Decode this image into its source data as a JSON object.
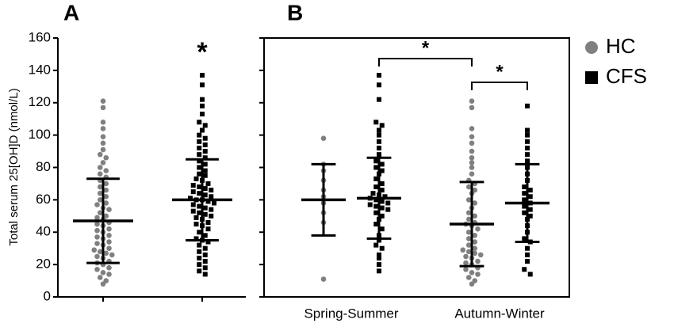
{
  "chart_data": [
    {
      "type": "dot",
      "label": "A",
      "ylabel": "Total serum 25[OH]D (nmol/L)",
      "ylim": [
        0,
        160
      ],
      "yticks": [
        0,
        20,
        40,
        60,
        80,
        100,
        120,
        140,
        160
      ],
      "annotation": "*",
      "series": [
        {
          "name": "HC",
          "color": "#808080",
          "marker": "circle",
          "values": [
            121,
            117,
            108,
            104,
            99,
            95,
            91,
            88,
            86,
            83,
            80,
            78,
            76,
            74,
            72,
            70,
            68,
            66,
            64,
            62,
            60,
            58,
            57,
            55,
            54,
            52,
            50,
            49,
            48,
            46,
            45,
            44,
            42,
            41,
            40,
            38,
            37,
            36,
            34,
            33,
            32,
            30,
            29,
            28,
            27,
            26,
            25,
            24,
            22,
            21,
            20,
            18,
            17,
            15,
            14,
            12,
            10,
            8
          ],
          "mean": 47,
          "sd": 26
        },
        {
          "name": "CFS",
          "color": "#000000",
          "marker": "square",
          "values": [
            137,
            131,
            122,
            118,
            113,
            108,
            106,
            103,
            100,
            98,
            96,
            94,
            92,
            90,
            88,
            86,
            84,
            82,
            80,
            78,
            76,
            75,
            73,
            72,
            70,
            69,
            68,
            67,
            66,
            65,
            64,
            63,
            62,
            61,
            60,
            60,
            59,
            58,
            57,
            56,
            55,
            54,
            53,
            52,
            51,
            50,
            49,
            48,
            46,
            45,
            44,
            42,
            40,
            38,
            36,
            35,
            34,
            32,
            30,
            28,
            26,
            24,
            22,
            20,
            18,
            16,
            14
          ],
          "mean": 60,
          "sd": 25
        }
      ]
    },
    {
      "type": "dot",
      "label": "B",
      "ylim": [
        0,
        160
      ],
      "categories": [
        "Spring-Summer",
        "Autumn-Winter"
      ],
      "annotations": [
        "*",
        "*"
      ],
      "series": [
        {
          "color": "#808080",
          "marker": "circle",
          "values": [
            [
              98,
              82,
              78,
              72,
              66,
              62,
              58,
              52,
              46,
              11
            ],
            [
              121,
              117,
              104,
              99,
              95,
              90,
              86,
              83,
              80,
              76,
              72,
              70,
              68,
              66,
              64,
              60,
              58,
              55,
              52,
              50,
              48,
              46,
              45,
              44,
              42,
              40,
              38,
              36,
              34,
              32,
              30,
              29,
              28,
              27,
              26,
              25,
              24,
              22,
              21,
              20,
              18,
              17,
              15,
              14,
              12,
              10,
              8
            ]
          ],
          "mean": [
            60,
            45
          ],
          "sd": [
            22,
            26
          ]
        },
        {
          "color": "#000000",
          "marker": "square",
          "values": [
            [
              137,
              131,
              122,
              108,
              106,
              103,
              100,
              96,
              92,
              88,
              84,
              82,
              80,
              78,
              76,
              73,
              70,
              68,
              66,
              64,
              63,
              62,
              61,
              60,
              59,
              58,
              57,
              56,
              55,
              54,
              52,
              50,
              48,
              45,
              42,
              38,
              35,
              32,
              30,
              26,
              24,
              20,
              16
            ],
            [
              118,
              103,
              100,
              96,
              92,
              88,
              84,
              80,
              76,
              72,
              68,
              66,
              64,
              62,
              60,
              58,
              56,
              54,
              52,
              50,
              48,
              44,
              40,
              36,
              34,
              30,
              26,
              22,
              17,
              14
            ]
          ],
          "mean": [
            61,
            58
          ],
          "sd": [
            25,
            24
          ]
        }
      ]
    }
  ]
}
